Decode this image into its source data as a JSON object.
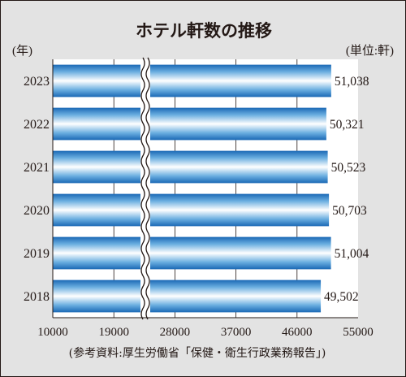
{
  "chart_data": {
    "type": "bar",
    "orientation": "horizontal",
    "title": "ホテル軒数の推移",
    "category_axis_label": "(年)",
    "unit_label": "(単位:軒)",
    "categories": [
      "2023",
      "2022",
      "2021",
      "2020",
      "2019",
      "2018"
    ],
    "values": [
      51038,
      50321,
      50523,
      50703,
      51004,
      49502
    ],
    "value_labels": [
      "51,038",
      "50,321",
      "50,523",
      "50,703",
      "51,004",
      "49,502"
    ],
    "xlim": [
      10000,
      55000
    ],
    "x_ticks": [
      10000,
      19000,
      28000,
      37000,
      46000,
      55000
    ],
    "x_tick_labels": [
      "10000",
      "19000",
      "28000",
      "37000",
      "46000",
      "55000"
    ],
    "axis_break": true,
    "grid": true,
    "source": "(参考資料:厚生労働省「保健・衛生行政業務報告」)",
    "colors": {
      "bar_edge": "#1a68b5",
      "bar_highlight": "#ffffff",
      "panel_background": "#e3e3e3",
      "plot_background": "#ffffff",
      "text": "#231815"
    }
  }
}
